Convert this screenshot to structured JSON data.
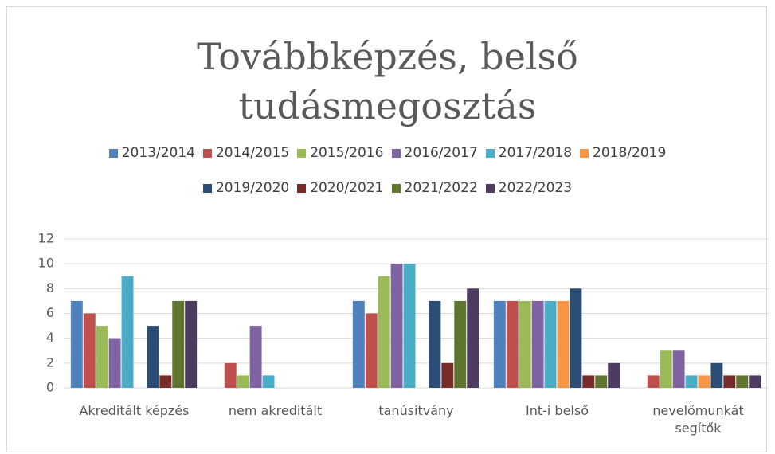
{
  "chart_data": {
    "type": "bar",
    "title": "Továbbképzés, belső tudásmegosztás",
    "categories": [
      "Akreditált képzés",
      "nem akreditált",
      "tanúsítvány",
      "Int-i belső",
      "nevelőmunkát segítők"
    ],
    "series": [
      {
        "name": "2013/2014",
        "color": "#4f81bd",
        "values": [
          7,
          0,
          7,
          7,
          0
        ]
      },
      {
        "name": "2014/2015",
        "color": "#c0504d",
        "values": [
          6,
          2,
          6,
          7,
          1
        ]
      },
      {
        "name": "2015/2016",
        "color": "#9bbb59",
        "values": [
          5,
          1,
          9,
          7,
          3
        ]
      },
      {
        "name": "2016/2017",
        "color": "#8064a2",
        "values": [
          4,
          5,
          10,
          7,
          3
        ]
      },
      {
        "name": "2017/2018",
        "color": "#4bacc6",
        "values": [
          9,
          1,
          10,
          7,
          1
        ]
      },
      {
        "name": "2018/2019",
        "color": "#f79646",
        "values": [
          0,
          0,
          0,
          7,
          1
        ]
      },
      {
        "name": "2019/2020",
        "color": "#2c4d75",
        "values": [
          5,
          0,
          7,
          8,
          2
        ]
      },
      {
        "name": "2020/2021",
        "color": "#772c2a",
        "values": [
          1,
          0,
          2,
          1,
          1
        ]
      },
      {
        "name": "2021/2022",
        "color": "#5f7530",
        "values": [
          7,
          0,
          7,
          1,
          1
        ]
      },
      {
        "name": "2022/2023",
        "color": "#4d3b62",
        "values": [
          7,
          0,
          8,
          2,
          1
        ]
      }
    ],
    "ylim": [
      0,
      12
    ],
    "yticks": [
      0,
      2,
      4,
      6,
      8,
      10,
      12
    ],
    "grid": true
  }
}
